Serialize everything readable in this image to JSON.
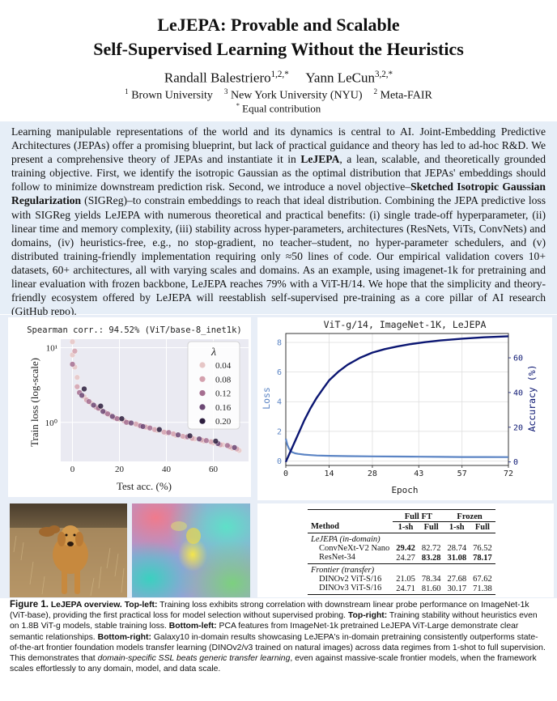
{
  "paper": {
    "title_line1": "LeJEPA: Provable and Scalable",
    "title_line2": "Self-Supervised Learning Without the Heuristics",
    "author1": "Randall Balestriero",
    "author1_sup": "1,2,*",
    "author2": "Yann LeCun",
    "author2_sup": "3,2,*",
    "affil1_sup": "1",
    "affil1": "Brown University",
    "affil3_sup": "3",
    "affil3": "New York University (NYU)",
    "affil2_sup": "2",
    "affil2": "Meta-FAIR",
    "contrib_sup": "*",
    "contrib": "Equal contribution"
  },
  "abstract": {
    "p1": "Learning manipulable representations of the world and its dynamics is central to AI. Joint-Embedding Predictive Architectures (JEPAs) offer a promising blueprint, but lack of practical guidance and theory has led to ad-hoc R&D. We present a comprehensive theory of JEPAs and instantiate it in ",
    "kw1": "LeJEPA",
    "p2": ", a lean, scalable, and theoretically grounded training objective. First, we identify the isotropic Gaussian as the optimal distribution that JEPAs' embeddings should follow to minimize downstream prediction risk. Second, we introduce a novel objective–",
    "kw2": "Sketched Isotropic Gaussian Regularization",
    "p3": " (SIGReg)–to constrain embeddings to reach that ideal distribution. Combining the JEPA predictive loss with SIGReg yields LeJEPA with numerous theoretical and practical benefits: (i) single trade-off hyperparameter, (ii) linear time and memory complexity, (iii) stability across hyper-parameters, architectures (ResNets, ViTs, ConvNets) and domains, (iv) heuristics-free, e.g., no stop-gradient, no teacher–student, no hyper-parameter schedulers, and (v) distributed training-friendly implementation requiring only ≈50 lines of code. Our empirical validation covers 10+ datasets, 60+ architectures, all with varying scales and domains. As an example, using imagenet-1k for pretraining and linear evaluation with frozen backbone, LeJEPA reaches 79% with a ViT-H/14. We hope that the simplicity and theory-friendly ecosystem offered by LeJEPA will reestablish self-supervised pre-training as a core pillar of AI research (",
    "link": "GitHub repo",
    "p4": ")."
  },
  "chart_data": [
    {
      "type": "scatter",
      "title": "Spearman corr.: 94.52% (ViT/base-8_inet1k)",
      "xlabel": "Test acc. (%)",
      "ylabel": "Train loss (log-scale)",
      "xlim": [
        -5,
        75
      ],
      "ylim_log": [
        0.3,
        13
      ],
      "yscale": "log",
      "x_ticks": [
        "0",
        "20",
        "40",
        "60"
      ],
      "y_ticks": [
        "10⁰",
        "10¹"
      ],
      "grid": true,
      "legend": {
        "title": "λ",
        "placement": "top-right",
        "entries": [
          "0.04",
          "0.08",
          "0.12",
          "0.16",
          "0.20"
        ]
      },
      "colors": [
        "#e6c6c6",
        "#d4a1ae",
        "#a56e90",
        "#6c4874",
        "#2d1e3e"
      ],
      "series": [
        {
          "name": "0.04",
          "points": [
            [
              0,
              12
            ],
            [
              0,
              8
            ],
            [
              1,
              5.5
            ],
            [
              2,
              4
            ],
            [
              5,
              2.2
            ],
            [
              8,
              1.8
            ],
            [
              12,
              1.5
            ],
            [
              16,
              1.25
            ],
            [
              20,
              1.1
            ],
            [
              24,
              1.0
            ],
            [
              28,
              0.92
            ],
            [
              32,
              0.85
            ],
            [
              36,
              0.78
            ],
            [
              40,
              0.72
            ],
            [
              44,
              0.67
            ],
            [
              48,
              0.63
            ],
            [
              52,
              0.6
            ],
            [
              56,
              0.56
            ],
            [
              60,
              0.53
            ],
            [
              64,
              0.5
            ],
            [
              68,
              0.45
            ],
            [
              71,
              0.42
            ]
          ]
        },
        {
          "name": "0.08",
          "points": [
            [
              1,
              9
            ],
            [
              2,
              3
            ],
            [
              6,
              2.0
            ],
            [
              10,
              1.6
            ],
            [
              14,
              1.35
            ],
            [
              18,
              1.15
            ],
            [
              22,
              1.05
            ],
            [
              27,
              0.95
            ],
            [
              31,
              0.87
            ],
            [
              35,
              0.8
            ],
            [
              39,
              0.74
            ],
            [
              43,
              0.7
            ],
            [
              47,
              0.65
            ],
            [
              51,
              0.61
            ],
            [
              55,
              0.58
            ],
            [
              59,
              0.55
            ],
            [
              63,
              0.5
            ],
            [
              67,
              0.47
            ],
            [
              70,
              0.44
            ]
          ]
        },
        {
          "name": "0.12",
          "points": [
            [
              0,
              6
            ],
            [
              3,
              2.5
            ],
            [
              7,
              1.9
            ],
            [
              11,
              1.55
            ],
            [
              15,
              1.3
            ],
            [
              19,
              1.12
            ],
            [
              23,
              1.0
            ],
            [
              29,
              0.9
            ],
            [
              33,
              0.84
            ],
            [
              41,
              0.73
            ],
            [
              49,
              0.64
            ],
            [
              57,
              0.57
            ],
            [
              66,
              0.49
            ]
          ]
        },
        {
          "name": "0.16",
          "points": [
            [
              4,
              2.3
            ],
            [
              9,
              1.7
            ],
            [
              13,
              1.4
            ],
            [
              17,
              1.2
            ],
            [
              25,
              0.98
            ],
            [
              30,
              0.88
            ],
            [
              45,
              0.68
            ],
            [
              54,
              0.6
            ],
            [
              62,
              0.52
            ],
            [
              69,
              0.46
            ]
          ]
        },
        {
          "name": "0.20",
          "points": [
            [
              5,
              2.8
            ],
            [
              12,
              1.65
            ],
            [
              21,
              1.12
            ],
            [
              37,
              0.8
            ],
            [
              50,
              0.66
            ],
            [
              61,
              0.56
            ]
          ]
        }
      ]
    },
    {
      "type": "line",
      "title": "ViT-g/14, ImageNet-1K, LeJEPA",
      "xlabel": "Epoch",
      "ylabel_left": "Loss",
      "ylabel_right": "Accuracy (%)",
      "xlim": [
        0,
        72
      ],
      "ylim_left": [
        -0.3,
        8.6
      ],
      "ylim_right": [
        -2,
        74
      ],
      "x_ticks": [
        "0",
        "14",
        "28",
        "43",
        "57",
        "72"
      ],
      "y_ticks_left": [
        "0",
        "2",
        "4",
        "6",
        "8"
      ],
      "y_ticks_right": [
        "0",
        "20",
        "40",
        "60"
      ],
      "grid": true,
      "series": [
        {
          "name": "Loss",
          "axis": "left",
          "color": "#5b84c4",
          "x": [
            0,
            0.5,
            1,
            1.5,
            2,
            3,
            4,
            6,
            8,
            10,
            14,
            20,
            28,
            36,
            43,
            50,
            57,
            64,
            72
          ],
          "values": [
            1.5,
            1.1,
            0.85,
            0.7,
            0.6,
            0.52,
            0.48,
            0.43,
            0.4,
            0.37,
            0.35,
            0.33,
            0.31,
            0.3,
            0.29,
            0.28,
            0.27,
            0.27,
            0.26
          ]
        },
        {
          "name": "Accuracy",
          "axis": "right",
          "color": "#0b1672",
          "x": [
            0,
            2,
            4,
            6,
            8,
            10,
            12,
            14,
            17,
            20,
            24,
            28,
            32,
            36,
            40,
            45,
            50,
            57,
            64,
            72
          ],
          "values": [
            0,
            8,
            16,
            24,
            31,
            37,
            42,
            47,
            52,
            56,
            60,
            63,
            65,
            66.5,
            67.8,
            69,
            70,
            71,
            71.8,
            72.4
          ]
        }
      ]
    }
  ],
  "images": {
    "dog_alt": "photo",
    "pca_alt": "pca features"
  },
  "table": {
    "group1": "Full FT",
    "group2": "Frozen",
    "col_method": "Method",
    "sub_cols": [
      "1-sh",
      "Full",
      "1-sh",
      "Full"
    ],
    "section1": "LeJEPA (in-domain)",
    "rows1": [
      {
        "method": "ConvNeXt-V2 Nano",
        "v": [
          "29.42",
          "82.72",
          "28.74",
          "76.52"
        ],
        "bold": [
          true,
          false,
          false,
          false
        ]
      },
      {
        "method": "ResNet-34",
        "v": [
          "24.27",
          "83.28",
          "31.08",
          "78.17"
        ],
        "bold": [
          false,
          true,
          true,
          true
        ]
      }
    ],
    "section2": "Frontier (transfer)",
    "rows2": [
      {
        "method": "DINOv2 ViT-S/16",
        "v": [
          "21.05",
          "78.34",
          "27.68",
          "67.62"
        ]
      },
      {
        "method": "DINOv3 ViT-S/16",
        "v": [
          "24.71",
          "81.60",
          "30.17",
          "71.38"
        ]
      }
    ]
  },
  "caption": {
    "label": "Figure 1.",
    "b1": "LeJEPA overview. Top-left:",
    "t1": " Training loss exhibits strong correlation with downstream linear probe performance on ImageNet-1k (ViT-base), providing the first practical loss for model selection without supervised probing. ",
    "b2": "Top-right:",
    "t2": " Training stability without heuristics even on 1.8B ViT-g models, stable training loss. ",
    "b3": "Bottom-left:",
    "t3": " PCA features from ImageNet-1k pretrained LeJEPA ViT-Large demonstrate clear semantic relationships. ",
    "b4": "Bottom-right:",
    "t4": " Galaxy10 in-domain results showcasing LeJEPA's in-domain pretraining consistently outperforms state-of-the-art frontier foundation models transfer learning (DINOv2/v3 trained on natural images) across data regimes from 1-shot to full supervision. This demonstrates that ",
    "i1": "domain-specific SSL beats generic transfer learning",
    "t5": ", even against massive-scale frontier models, when the framework scales effortlessly to any domain, model, and data scale."
  }
}
